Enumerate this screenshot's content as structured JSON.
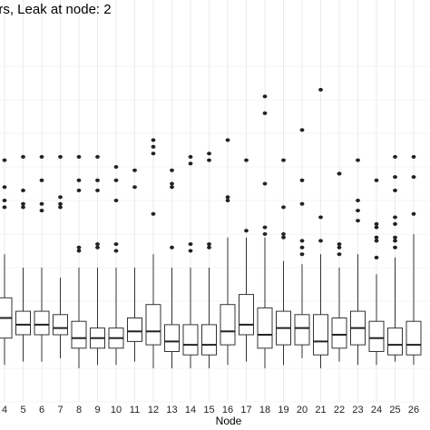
{
  "chart_data": {
    "type": "box",
    "title": "ors, Leak at node: 2",
    "xlabel": "Node",
    "ylabel": "",
    "grid": true,
    "categories": [
      "4",
      "5",
      "6",
      "7",
      "8",
      "9",
      "10",
      "11",
      "12",
      "13",
      "14",
      "15",
      "16",
      "17",
      "18",
      "19",
      "20",
      "21",
      "22",
      "23",
      "24",
      "25",
      "26"
    ],
    "ylim": [
      0,
      100
    ],
    "boxes": [
      {
        "node": "4",
        "whisker_low": 11,
        "q1": 19,
        "median": 25,
        "q3": 31,
        "whisker_high": 44,
        "outliers": [
          58,
          60,
          64,
          72
        ]
      },
      {
        "node": "5",
        "whisker_low": 12,
        "q1": 20,
        "median": 23,
        "q3": 27,
        "whisker_high": 40,
        "outliers": [
          58,
          59,
          63,
          73
        ]
      },
      {
        "node": "6",
        "whisker_low": 12,
        "q1": 20,
        "median": 23,
        "q3": 27,
        "whisker_high": 40,
        "outliers": [
          57,
          59,
          66,
          73
        ]
      },
      {
        "node": "7",
        "whisker_low": 13,
        "q1": 20,
        "median": 22,
        "q3": 26,
        "whisker_high": 37,
        "outliers": [
          58,
          59,
          61,
          73
        ]
      },
      {
        "node": "8",
        "whisker_low": 10,
        "q1": 16,
        "median": 19,
        "q3": 24,
        "whisker_high": 40,
        "outliers": [
          45,
          46,
          63,
          66,
          73
        ]
      },
      {
        "node": "9",
        "whisker_low": 11,
        "q1": 16,
        "median": 19,
        "q3": 22,
        "whisker_high": 40,
        "outliers": [
          46,
          47,
          63,
          66,
          73
        ]
      },
      {
        "node": "10",
        "whisker_low": 11,
        "q1": 16,
        "median": 19,
        "q3": 22,
        "whisker_high": 40,
        "outliers": [
          45,
          47,
          60,
          66,
          70
        ]
      },
      {
        "node": "11",
        "whisker_low": 12,
        "q1": 18,
        "median": 21,
        "q3": 25,
        "whisker_high": 40,
        "outliers": [
          64,
          69
        ]
      },
      {
        "node": "12",
        "whisker_low": 10,
        "q1": 17,
        "median": 21,
        "q3": 29,
        "whisker_high": 44,
        "outliers": [
          56,
          74,
          76,
          78
        ]
      },
      {
        "node": "13",
        "whisker_low": 10,
        "q1": 15,
        "median": 18,
        "q3": 23,
        "whisker_high": 40,
        "outliers": [
          46,
          64,
          65,
          69
        ]
      },
      {
        "node": "14",
        "whisker_low": 10,
        "q1": 14,
        "median": 17,
        "q3": 23,
        "whisker_high": 40,
        "outliers": [
          45,
          47,
          71,
          73
        ]
      },
      {
        "node": "15",
        "whisker_low": 10,
        "q1": 14,
        "median": 17,
        "q3": 23,
        "whisker_high": 40,
        "outliers": [
          46,
          47,
          72,
          74
        ]
      },
      {
        "node": "16",
        "whisker_low": 11,
        "q1": 17,
        "median": 21,
        "q3": 29,
        "whisker_high": 49,
        "outliers": [
          60,
          61,
          78
        ]
      },
      {
        "node": "17",
        "whisker_low": 12,
        "q1": 20,
        "median": 23,
        "q3": 32,
        "whisker_high": 49,
        "outliers": [
          51,
          72
        ]
      },
      {
        "node": "18",
        "whisker_low": 10,
        "q1": 16,
        "median": 20,
        "q3": 28,
        "whisker_high": 49,
        "outliers": [
          50,
          52,
          65,
          86,
          91
        ]
      },
      {
        "node": "19",
        "whisker_low": 11,
        "q1": 17,
        "median": 22,
        "q3": 27,
        "whisker_high": 42,
        "outliers": [
          49,
          50,
          58,
          72
        ]
      },
      {
        "node": "20",
        "whisker_low": 13,
        "q1": 17,
        "median": 22,
        "q3": 26,
        "whisker_high": 41,
        "outliers": [
          44,
          46,
          48,
          59,
          66,
          81
        ]
      },
      {
        "node": "21",
        "whisker_low": 10,
        "q1": 14,
        "median": 18,
        "q3": 26,
        "whisker_high": 44,
        "outliers": [
          48,
          55,
          93
        ]
      },
      {
        "node": "22",
        "whisker_low": 12,
        "q1": 16,
        "median": 20,
        "q3": 25,
        "whisker_high": 40,
        "outliers": [
          44,
          46,
          47,
          68,
          68
        ]
      },
      {
        "node": "23",
        "whisker_low": 11,
        "q1": 17,
        "median": 22,
        "q3": 27,
        "whisker_high": 44,
        "outliers": [
          54,
          57,
          60,
          72
        ]
      },
      {
        "node": "24",
        "whisker_low": 11,
        "q1": 15,
        "median": 19,
        "q3": 24,
        "whisker_high": 38,
        "outliers": [
          43,
          48,
          49,
          52,
          53,
          66
        ]
      },
      {
        "node": "25",
        "whisker_low": 12,
        "q1": 14,
        "median": 17,
        "q3": 22,
        "whisker_high": 43,
        "outliers": [
          46,
          48,
          49,
          53,
          55,
          63,
          67,
          73
        ]
      },
      {
        "node": "26",
        "whisker_low": 11,
        "q1": 14,
        "median": 17,
        "q3": 24,
        "whisker_high": 50,
        "outliers": [
          56,
          67,
          73
        ]
      }
    ]
  }
}
